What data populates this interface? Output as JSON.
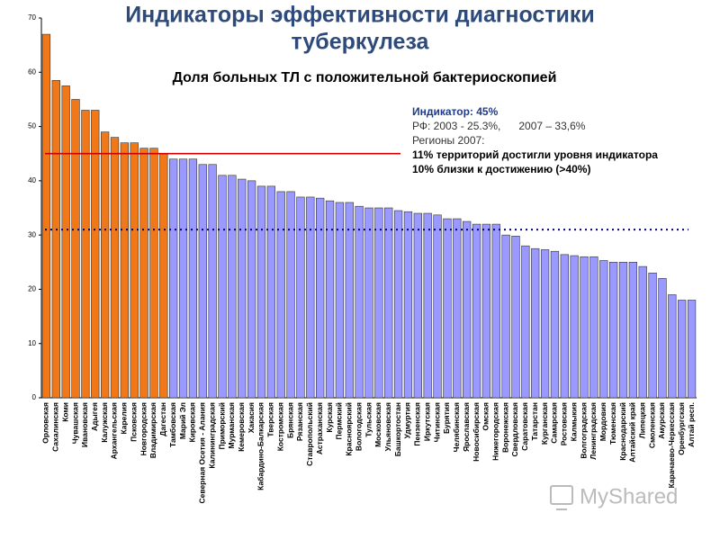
{
  "chart_data": {
    "type": "bar",
    "title": [
      "Индикаторы эффективности диагностики",
      "туберкулеза"
    ],
    "subtitle": "Доля больных ТЛ с положительной бактериоскопией",
    "annotations": [
      "Индикатор: 45%",
      "РФ: 2003 - 25.3%,      2007 – 33,6%",
      "Регионы 2007:",
      "11% территорий достигли уровня индикатора",
      "10% близки к достижению (>40%)"
    ],
    "watermark": "MyShared",
    "categories": [
      "Орловская",
      "Сахалинская",
      "Коми",
      "Чувашская",
      "Ивановская",
      "Адыгея",
      "Калужская",
      "Архангельская",
      "Карелия",
      "Псковская",
      "Новгородская",
      "Владимирская",
      "Дагестан",
      "Тамбовская",
      "Марий Эл",
      "Кировская",
      "Северная Осетия - Алания",
      "Калининградская",
      "Приморский",
      "Мурманская",
      "Кемеровская",
      "Хакасия",
      "Кабардино-Балкарская",
      "Тверская",
      "Костромская",
      "Брянская",
      "Рязанская",
      "Ставропольский",
      "Астраханская",
      "Курская",
      "Пермский",
      "Красноярский",
      "Вологодская",
      "Тульская",
      "Московская",
      "Ульяновская",
      "Башкортостан",
      "Удмуртия",
      "Пензенская",
      "Иркутская",
      "Читинская",
      "Бурятия",
      "Челябинская",
      "Ярославская",
      "Новосибирская",
      "Омская",
      "Нижегородская",
      "Воронежская",
      "Свердловская",
      "Саратовская",
      "Татарстан",
      "Курганская",
      "Самарская",
      "Ростовская",
      "Калмыкия",
      "Волгоградская",
      "Ленинградская",
      "Мордовия",
      "Тюменская",
      "Краснодарский",
      "Алтайский край",
      "Липецкая",
      "Смоленская",
      "Амурская",
      "Карачаево-Черкесская",
      "Оренбургская",
      "Алтай респ."
    ],
    "values": [
      67,
      58.5,
      57.5,
      55,
      53,
      53,
      49,
      48,
      47,
      47,
      46,
      46,
      45,
      44,
      44,
      44,
      43,
      43,
      41,
      41,
      40.3,
      40,
      39,
      39,
      38,
      38,
      37,
      37,
      36.8,
      36.3,
      36,
      36,
      35.3,
      35,
      35,
      35,
      34.5,
      34.3,
      34,
      34,
      33.7,
      33,
      33,
      32.5,
      32,
      32,
      32,
      30,
      29.8,
      28,
      27.5,
      27.3,
      27,
      26.4,
      26.2,
      26,
      26,
      25.3,
      25,
      25,
      25,
      24.2,
      23,
      22,
      19,
      18,
      18
    ],
    "bar_colors": [
      "#f07818",
      "#f07818",
      "#f07818",
      "#f07818",
      "#f07818",
      "#f07818",
      "#f07818",
      "#f07818",
      "#f07818",
      "#f07818",
      "#f07818",
      "#f07818",
      "#f07818",
      "#9999ff",
      "#9999ff",
      "#9999ff",
      "#9999ff",
      "#9999ff",
      "#9999ff",
      "#9999ff",
      "#9999ff",
      "#9999ff",
      "#9999ff",
      "#9999ff",
      "#9999ff",
      "#9999ff",
      "#9999ff",
      "#9999ff",
      "#9999ff",
      "#9999ff",
      "#9999ff",
      "#9999ff",
      "#9999ff",
      "#9999ff",
      "#9999ff",
      "#9999ff",
      "#9999ff",
      "#9999ff",
      "#9999ff",
      "#9999ff",
      "#9999ff",
      "#9999ff",
      "#9999ff",
      "#9999ff",
      "#9999ff",
      "#9999ff",
      "#9999ff",
      "#9999ff",
      "#9999ff",
      "#9999ff",
      "#9999ff",
      "#9999ff",
      "#9999ff",
      "#9999ff",
      "#9999ff",
      "#9999ff",
      "#9999ff",
      "#9999ff",
      "#9999ff",
      "#9999ff",
      "#9999ff",
      "#9999ff",
      "#9999ff",
      "#9999ff",
      "#9999ff",
      "#9999ff",
      "#9999ff"
    ],
    "reference_lines": [
      {
        "value": 45,
        "color": "#cc0000",
        "style": "solid"
      },
      {
        "value": 31,
        "color": "#000080",
        "style": "dotted"
      }
    ],
    "ylim": [
      0,
      70
    ],
    "yticks": [
      0,
      10,
      20,
      30,
      40,
      50,
      60,
      70
    ],
    "grid": false
  }
}
